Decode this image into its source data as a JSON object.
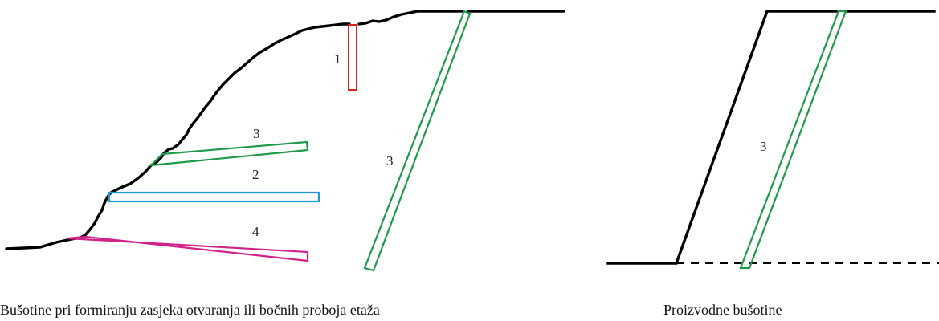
{
  "left_diagram": {
    "labels": {
      "hole_1": "1",
      "hole_3_upper": "3",
      "hole_2": "2",
      "hole_4": "4",
      "hole_3_inclined": "3"
    },
    "caption": "Bušotine pri formiranju zasjeka otvaranja ili bočnih proboja etaža"
  },
  "right_diagram": {
    "labels": {
      "hole_3": "3"
    },
    "caption": "Proizvodne bušotine"
  },
  "colors": {
    "terrain": "#000000",
    "hole_1": "#d0261e",
    "hole_2": "#1e9ad6",
    "hole_3": "#1e9a4a",
    "hole_4": "#d0238a"
  }
}
